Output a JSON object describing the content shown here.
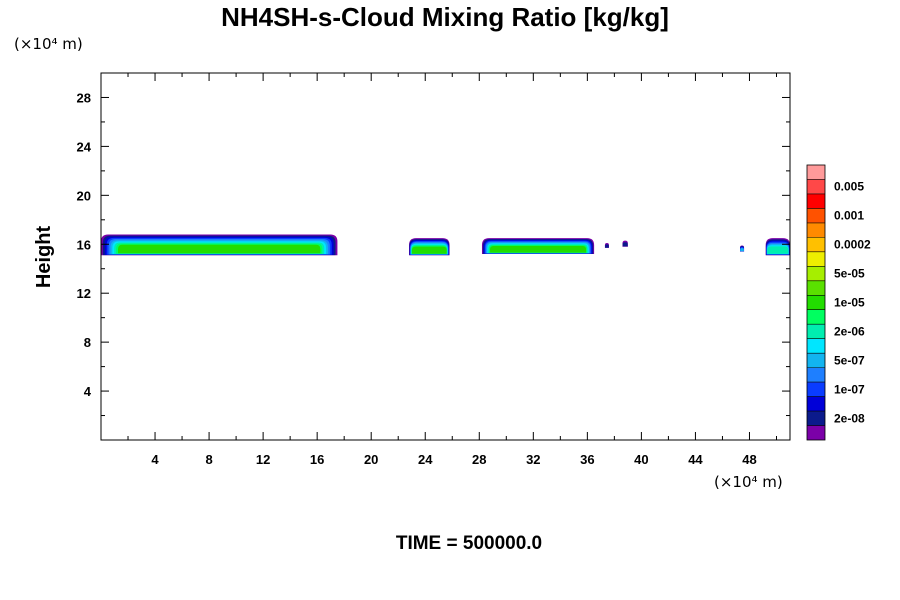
{
  "chart_data": {
    "type": "heatmap",
    "title": "NH4SH-s-Cloud Mixing Ratio [kg/kg]",
    "ylabel": "Height",
    "x_unit": "(×10⁴ m)",
    "y_unit": "(×10⁴ m)",
    "footer": "TIME = 500000.0",
    "xlim": [
      0,
      51
    ],
    "ylim": [
      0,
      30
    ],
    "x_ticks": [
      4,
      8,
      12,
      16,
      20,
      24,
      28,
      32,
      36,
      40,
      44,
      48
    ],
    "y_ticks": [
      4,
      8,
      12,
      16,
      20,
      24,
      28
    ],
    "x_minor_step": 2,
    "y_minor_step": 2,
    "colorbar": {
      "colors": [
        "#7b00a8",
        "#0b1a8c",
        "#0000d8",
        "#0a3cff",
        "#1e7fff",
        "#12b4f0",
        "#00e6ff",
        "#00eeb0",
        "#00ff60",
        "#22dd00",
        "#5ae000",
        "#a6ee00",
        "#eeee00",
        "#ffc000",
        "#ff8a00",
        "#ff5200",
        "#ff0000",
        "#ff4848",
        "#ff9a9a"
      ],
      "tick_labels": [
        "2e-08",
        "1e-07",
        "5e-07",
        "2e-06",
        "1e-05",
        "5e-05",
        "0.0002",
        "0.001",
        "0.005"
      ],
      "tick_after_band": [
        2,
        4,
        6,
        8,
        10,
        12,
        14,
        16,
        18
      ]
    },
    "cloud_patches": [
      {
        "x": [
          0.0,
          17.5
        ],
        "y": [
          15.1,
          16.8
        ],
        "peak_level": 9
      },
      {
        "x": [
          22.8,
          25.8
        ],
        "y": [
          15.1,
          16.5
        ],
        "peak_level": 9
      },
      {
        "x": [
          28.2,
          36.5
        ],
        "y": [
          15.2,
          16.5
        ],
        "peak_level": 9
      },
      {
        "x": [
          38.6,
          39.0
        ],
        "y": [
          15.8,
          16.3
        ],
        "peak_level": 1
      },
      {
        "x": [
          37.3,
          37.6
        ],
        "y": [
          15.7,
          16.1
        ],
        "peak_level": 1
      },
      {
        "x": [
          47.3,
          47.6
        ],
        "y": [
          15.4,
          15.9
        ],
        "peak_level": 5
      },
      {
        "x": [
          49.2,
          51.0
        ],
        "y": [
          15.1,
          16.5
        ],
        "peak_level": 7
      }
    ]
  }
}
